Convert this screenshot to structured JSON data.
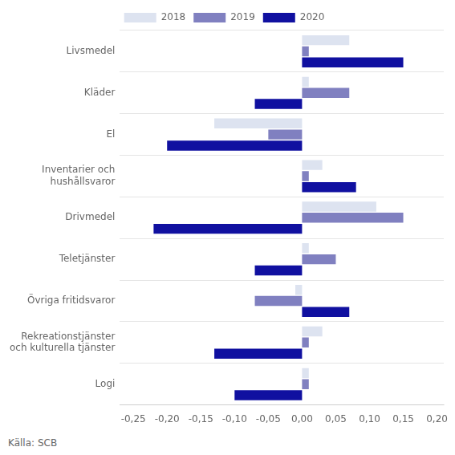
{
  "chart_data": {
    "type": "bar",
    "orientation": "horizontal",
    "categories": [
      "Livsmedel",
      "Kläder",
      "El",
      "Inventarier och\nhushållsvaror",
      "Drivmedel",
      "Teletjänster",
      "Övriga fritidsvaror",
      "Rekreationstjänster\noch kulturella tjänster",
      "Logi"
    ],
    "series": [
      {
        "name": "2018",
        "color": "#dde3f0",
        "values": [
          0.07,
          0.01,
          -0.13,
          0.03,
          0.11,
          0.01,
          -0.01,
          0.03,
          0.01
        ]
      },
      {
        "name": "2019",
        "color": "#8080c0",
        "values": [
          0.01,
          0.07,
          -0.05,
          0.01,
          0.15,
          0.05,
          -0.07,
          0.01,
          0.01
        ]
      },
      {
        "name": "2020",
        "color": "#1010a0",
        "values": [
          0.15,
          -0.07,
          -0.2,
          0.08,
          -0.22,
          -0.07,
          0.07,
          -0.13,
          -0.1
        ]
      }
    ],
    "xlim": [
      -0.27,
      0.21
    ],
    "xticks": [
      {
        "value": -0.25,
        "label": "-0,25"
      },
      {
        "value": -0.2,
        "label": "-0,20"
      },
      {
        "value": -0.15,
        "label": "-0,15"
      },
      {
        "value": -0.1,
        "label": "-0,10"
      },
      {
        "value": -0.05,
        "label": "-0,05"
      },
      {
        "value": 0.0,
        "label": "0,00"
      },
      {
        "value": 0.05,
        "label": "0,05"
      },
      {
        "value": 0.1,
        "label": "0,10"
      },
      {
        "value": 0.15,
        "label": "0,15"
      },
      {
        "value": 0.2,
        "label": "0,20"
      }
    ],
    "legend": "top",
    "grid": true,
    "annotations": [
      "Källa: SCB"
    ]
  }
}
